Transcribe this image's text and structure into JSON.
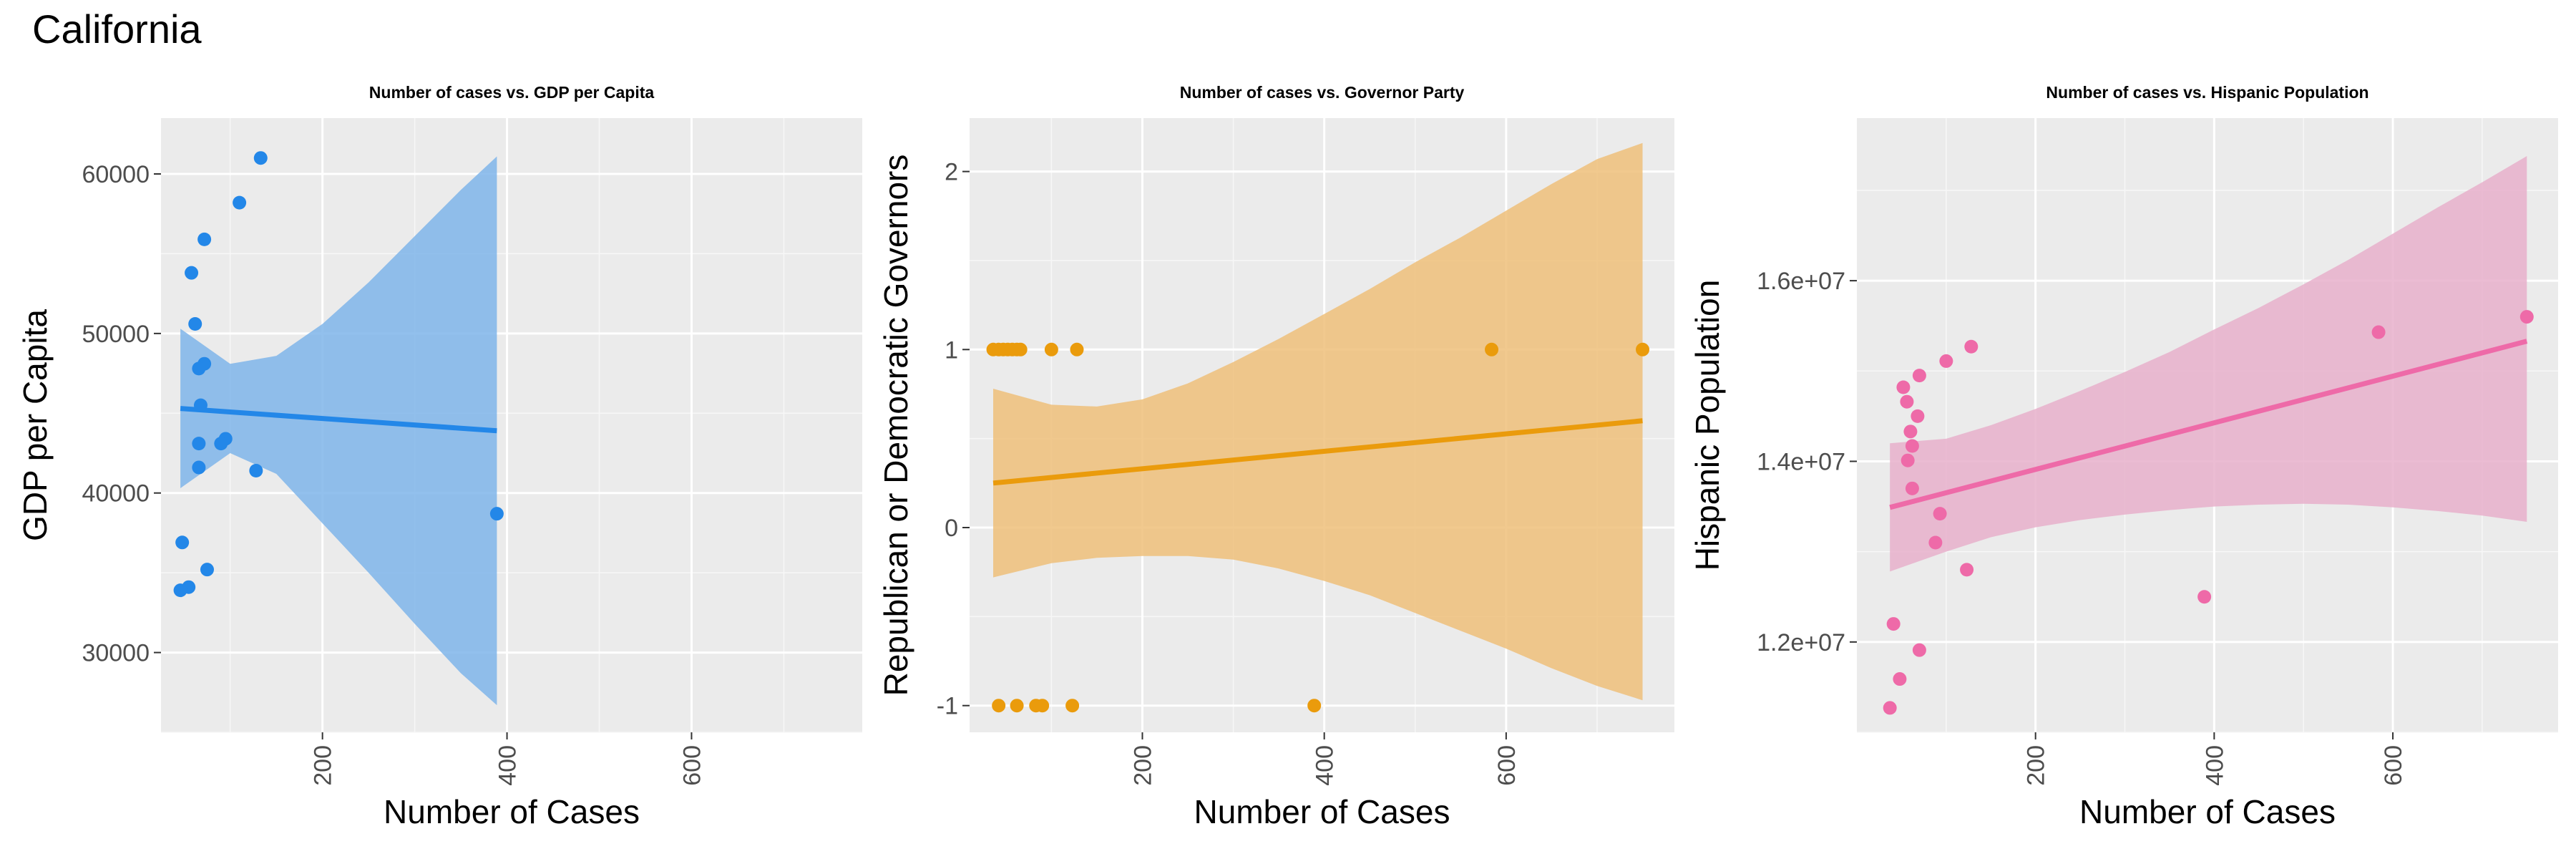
{
  "page": {
    "title": "California"
  },
  "chart_data": [
    {
      "type": "scatter",
      "title": "Number of cases vs. GDP per Capita",
      "xlabel": "Number of Cases",
      "ylabel": "GDP per Capita",
      "xlim": [
        25,
        785
      ],
      "ylim": [
        25000,
        63500
      ],
      "x_ticks": [
        200,
        400,
        600
      ],
      "y_ticks": [
        30000,
        40000,
        50000,
        60000
      ],
      "y_tick_labels": [
        "30000",
        "40000",
        "50000",
        "60000"
      ],
      "grid": true,
      "color": "#2387e8",
      "band_color": "#7fb5ea",
      "points": [
        {
          "x": 133,
          "y": 61000
        },
        {
          "x": 110,
          "y": 58200
        },
        {
          "x": 72,
          "y": 55900
        },
        {
          "x": 58,
          "y": 53800
        },
        {
          "x": 62,
          "y": 50600
        },
        {
          "x": 72,
          "y": 48100
        },
        {
          "x": 66,
          "y": 47800
        },
        {
          "x": 68,
          "y": 45500
        },
        {
          "x": 95,
          "y": 43400
        },
        {
          "x": 90,
          "y": 43100
        },
        {
          "x": 66,
          "y": 43100
        },
        {
          "x": 66,
          "y": 41600
        },
        {
          "x": 128,
          "y": 41400
        },
        {
          "x": 389,
          "y": 38700
        },
        {
          "x": 48,
          "y": 36900
        },
        {
          "x": 75,
          "y": 35200
        },
        {
          "x": 55,
          "y": 34100
        },
        {
          "x": 46,
          "y": 33900
        }
      ],
      "trend": {
        "x": [
          46,
          389
        ],
        "y": [
          45300,
          43900
        ]
      },
      "band": {
        "x": [
          46,
          100,
          150,
          200,
          250,
          300,
          350,
          389
        ],
        "upper": [
          50300,
          48100,
          48600,
          50600,
          53200,
          56100,
          59000,
          61100
        ],
        "lower": [
          40300,
          42500,
          41200,
          38100,
          35000,
          31800,
          28700,
          26700
        ]
      }
    },
    {
      "type": "scatter",
      "title": "Number of cases vs. Governor Party",
      "xlabel": "Number of Cases",
      "ylabel": "Republican or Democratic Governors",
      "xlim": [
        10,
        785
      ],
      "ylim": [
        -1.15,
        2.3
      ],
      "x_ticks": [
        200,
        400,
        600
      ],
      "y_ticks": [
        -1,
        0,
        1,
        2
      ],
      "y_tick_labels": [
        "-1",
        "0",
        "1",
        "2"
      ],
      "grid": true,
      "color": "#ea9b0c",
      "band_color": "#eec07a",
      "points": [
        {
          "x": 36,
          "y": 1
        },
        {
          "x": 42,
          "y": 1
        },
        {
          "x": 47,
          "y": 1
        },
        {
          "x": 52,
          "y": 1
        },
        {
          "x": 57,
          "y": 1
        },
        {
          "x": 62,
          "y": 1
        },
        {
          "x": 66,
          "y": 1
        },
        {
          "x": 100,
          "y": 1
        },
        {
          "x": 128,
          "y": 1
        },
        {
          "x": 584,
          "y": 1
        },
        {
          "x": 750,
          "y": 1
        },
        {
          "x": 42,
          "y": -1
        },
        {
          "x": 62,
          "y": -1
        },
        {
          "x": 83,
          "y": -1
        },
        {
          "x": 90,
          "y": -1
        },
        {
          "x": 123,
          "y": -1
        },
        {
          "x": 389,
          "y": -1
        }
      ],
      "trend": {
        "x": [
          36,
          750
        ],
        "y": [
          0.25,
          0.6
        ]
      },
      "band": {
        "x": [
          36,
          100,
          150,
          200,
          250,
          300,
          350,
          400,
          450,
          500,
          550,
          600,
          650,
          700,
          750
        ],
        "upper": [
          0.78,
          0.69,
          0.68,
          0.72,
          0.81,
          0.93,
          1.06,
          1.2,
          1.34,
          1.49,
          1.63,
          1.78,
          1.93,
          2.07,
          2.16
        ],
        "lower": [
          -0.28,
          -0.2,
          -0.17,
          -0.16,
          -0.16,
          -0.18,
          -0.23,
          -0.3,
          -0.38,
          -0.48,
          -0.58,
          -0.68,
          -0.79,
          -0.89,
          -0.97
        ]
      }
    },
    {
      "type": "scatter",
      "title": "Number of cases vs. Hispanic Population",
      "xlabel": "Number of Cases",
      "ylabel": "Hispanic Population",
      "xlim": [
        0,
        785
      ],
      "ylim": [
        11000000,
        17800000
      ],
      "x_ticks": [
        200,
        400,
        600
      ],
      "y_ticks": [
        12000000,
        14000000,
        16000000
      ],
      "y_tick_labels": [
        "1.2e+07",
        "1.4e+07",
        "1.6e+07"
      ],
      "grid": true,
      "color": "#ee6aa8",
      "band_color": "#e8b0cb",
      "points": [
        {
          "x": 750,
          "y": 15600000
        },
        {
          "x": 584,
          "y": 15430000
        },
        {
          "x": 128,
          "y": 15270000
        },
        {
          "x": 100,
          "y": 15110000
        },
        {
          "x": 70,
          "y": 14950000
        },
        {
          "x": 52,
          "y": 14820000
        },
        {
          "x": 56,
          "y": 14660000
        },
        {
          "x": 68,
          "y": 14500000
        },
        {
          "x": 60,
          "y": 14330000
        },
        {
          "x": 62,
          "y": 14170000
        },
        {
          "x": 57,
          "y": 14010000
        },
        {
          "x": 62,
          "y": 13700000
        },
        {
          "x": 93,
          "y": 13420000
        },
        {
          "x": 88,
          "y": 13100000
        },
        {
          "x": 123,
          "y": 12800000
        },
        {
          "x": 389,
          "y": 12500000
        },
        {
          "x": 41,
          "y": 12200000
        },
        {
          "x": 70,
          "y": 11910000
        },
        {
          "x": 48,
          "y": 11590000
        },
        {
          "x": 37,
          "y": 11270000
        }
      ],
      "trend": {
        "x": [
          37,
          750
        ],
        "y": [
          13490000,
          15330000
        ]
      },
      "band": {
        "x": [
          37,
          100,
          150,
          200,
          250,
          300,
          350,
          400,
          450,
          500,
          550,
          600,
          650,
          700,
          750
        ],
        "upper": [
          14200000,
          14250000,
          14400000,
          14580000,
          14780000,
          14990000,
          15210000,
          15460000,
          15700000,
          15960000,
          16230000,
          16520000,
          16810000,
          17090000,
          17380000
        ],
        "lower": [
          12780000,
          13000000,
          13160000,
          13270000,
          13350000,
          13410000,
          13460000,
          13500000,
          13520000,
          13530000,
          13520000,
          13490000,
          13450000,
          13400000,
          13330000
        ]
      }
    }
  ]
}
